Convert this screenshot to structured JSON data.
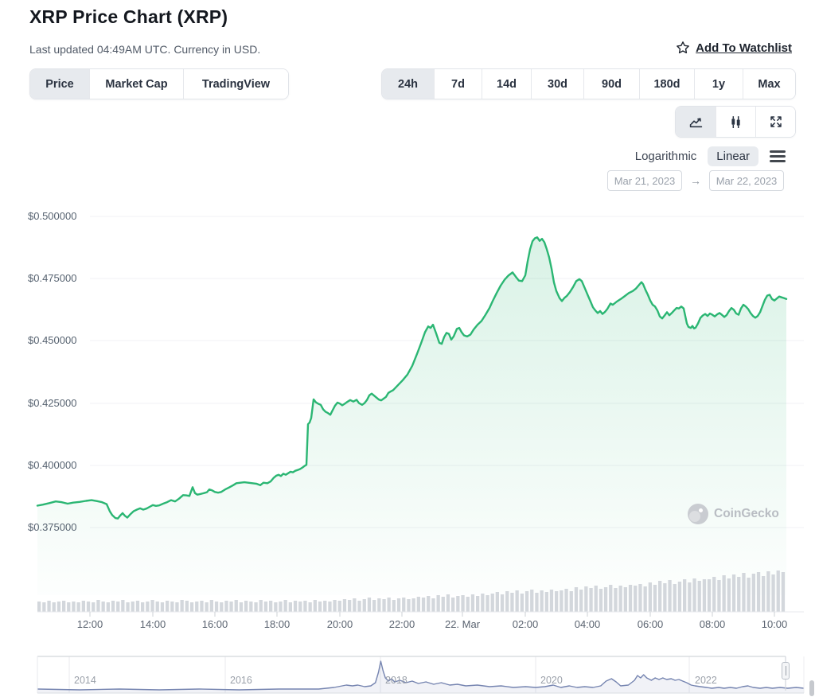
{
  "header": {
    "title": "XRP Price Chart (XRP)",
    "subtitle": "Last updated 04:49AM UTC. Currency in USD.",
    "watchlist_label": "Add To Watchlist"
  },
  "view_tabs": [
    {
      "label": "Price",
      "active": true
    },
    {
      "label": "Market Cap",
      "active": false
    },
    {
      "label": "TradingView",
      "active": false
    }
  ],
  "range_tabs": [
    {
      "label": "24h",
      "active": true
    },
    {
      "label": "7d",
      "active": false
    },
    {
      "label": "14d",
      "active": false
    },
    {
      "label": "30d",
      "active": false
    },
    {
      "label": "90d",
      "active": false
    },
    {
      "label": "180d",
      "active": false
    },
    {
      "label": "1y",
      "active": false
    },
    {
      "label": "Max",
      "active": false
    }
  ],
  "chart_toolbar": {
    "chart_types": [
      {
        "name": "line-chart",
        "active": true
      },
      {
        "name": "candlestick",
        "active": false
      },
      {
        "name": "fullscreen",
        "active": false
      }
    ],
    "scale_options": [
      {
        "label": "Logarithmic",
        "active": false
      },
      {
        "label": "Linear",
        "active": true
      }
    ],
    "date_from": "Mar 21, 2023",
    "date_to": "Mar 22, 2023",
    "range_arrow": "→"
  },
  "watermark": {
    "label": "CoinGecko"
  },
  "chart_data": {
    "type": "area",
    "currency": "USD",
    "title": "XRP Price Chart (XRP)",
    "ylim": [
      0.375,
      0.5
    ],
    "ytick_labels": [
      "$0.500000",
      "$0.475000",
      "$0.450000",
      "$0.425000",
      "$0.400000",
      "$0.375000"
    ],
    "ytick_values": [
      0.5,
      0.475,
      0.45,
      0.425,
      0.4,
      0.375
    ],
    "xtick_labels": [
      "12:00",
      "14:00",
      "16:00",
      "18:00",
      "20:00",
      "22:00",
      "22. Mar",
      "02:00",
      "04:00",
      "06:00",
      "08:00",
      "10:00"
    ],
    "line_color": "#2bb673",
    "grid": true,
    "legend": false,
    "t_domain": [
      0,
      941
    ],
    "points": [
      [
        0,
        0.3838
      ],
      [
        7,
        0.3842
      ],
      [
        15,
        0.3848
      ],
      [
        23,
        0.3855
      ],
      [
        30,
        0.3852
      ],
      [
        38,
        0.3846
      ],
      [
        45,
        0.385
      ],
      [
        53,
        0.3853
      ],
      [
        61,
        0.3857
      ],
      [
        68,
        0.386
      ],
      [
        75,
        0.3856
      ],
      [
        81,
        0.3852
      ],
      [
        87,
        0.3844
      ],
      [
        91,
        0.3815
      ],
      [
        94,
        0.38
      ],
      [
        98,
        0.3788
      ],
      [
        101,
        0.3786
      ],
      [
        104,
        0.3798
      ],
      [
        107,
        0.3808
      ],
      [
        110,
        0.3797
      ],
      [
        113,
        0.379
      ],
      [
        117,
        0.3804
      ],
      [
        121,
        0.3816
      ],
      [
        125,
        0.3822
      ],
      [
        129,
        0.3827
      ],
      [
        133,
        0.3822
      ],
      [
        137,
        0.3826
      ],
      [
        141,
        0.3833
      ],
      [
        145,
        0.384
      ],
      [
        149,
        0.3837
      ],
      [
        153,
        0.3839
      ],
      [
        158,
        0.3846
      ],
      [
        163,
        0.3852
      ],
      [
        168,
        0.386
      ],
      [
        173,
        0.3855
      ],
      [
        178,
        0.3866
      ],
      [
        183,
        0.388
      ],
      [
        187,
        0.3879
      ],
      [
        191,
        0.3877
      ],
      [
        195,
        0.3912
      ],
      [
        198,
        0.3888
      ],
      [
        201,
        0.3882
      ],
      [
        205,
        0.3885
      ],
      [
        209,
        0.3888
      ],
      [
        213,
        0.3892
      ],
      [
        216,
        0.3903
      ],
      [
        219,
        0.39
      ],
      [
        223,
        0.3893
      ],
      [
        227,
        0.389
      ],
      [
        231,
        0.3893
      ],
      [
        236,
        0.3903
      ],
      [
        241,
        0.3911
      ],
      [
        246,
        0.392
      ],
      [
        250,
        0.3928
      ],
      [
        255,
        0.393
      ],
      [
        260,
        0.3932
      ],
      [
        265,
        0.393
      ],
      [
        270,
        0.3928
      ],
      [
        275,
        0.3926
      ],
      [
        280,
        0.392
      ],
      [
        284,
        0.393
      ],
      [
        289,
        0.3928
      ],
      [
        293,
        0.3935
      ],
      [
        297,
        0.395
      ],
      [
        300,
        0.3958
      ],
      [
        303,
        0.3962
      ],
      [
        306,
        0.3957
      ],
      [
        309,
        0.3966
      ],
      [
        312,
        0.3962
      ],
      [
        315,
        0.3968
      ],
      [
        318,
        0.3974
      ],
      [
        321,
        0.3972
      ],
      [
        324,
        0.3978
      ],
      [
        327,
        0.3981
      ],
      [
        330,
        0.3985
      ],
      [
        333,
        0.3991
      ],
      [
        336,
        0.3998
      ],
      [
        338,
        0.4002
      ],
      [
        340,
        0.4165
      ],
      [
        342,
        0.4172
      ],
      [
        344,
        0.419
      ],
      [
        347,
        0.4265
      ],
      [
        350,
        0.4253
      ],
      [
        353,
        0.4247
      ],
      [
        356,
        0.4243
      ],
      [
        359,
        0.4225
      ],
      [
        362,
        0.4215
      ],
      [
        365,
        0.421
      ],
      [
        368,
        0.4203
      ],
      [
        371,
        0.4222
      ],
      [
        374,
        0.424
      ],
      [
        377,
        0.4252
      ],
      [
        380,
        0.4248
      ],
      [
        383,
        0.4241
      ],
      [
        386,
        0.4247
      ],
      [
        389,
        0.4254
      ],
      [
        393,
        0.4262
      ],
      [
        397,
        0.4256
      ],
      [
        401,
        0.4263
      ],
      [
        404,
        0.425
      ],
      [
        408,
        0.4243
      ],
      [
        411,
        0.425
      ],
      [
        414,
        0.4262
      ],
      [
        417,
        0.4281
      ],
      [
        420,
        0.4288
      ],
      [
        423,
        0.428
      ],
      [
        426,
        0.4272
      ],
      [
        429,
        0.4264
      ],
      [
        432,
        0.4261
      ],
      [
        435,
        0.4268
      ],
      [
        438,
        0.4275
      ],
      [
        441,
        0.4291
      ],
      [
        444,
        0.4297
      ],
      [
        447,
        0.4302
      ],
      [
        453,
        0.4322
      ],
      [
        459,
        0.4342
      ],
      [
        465,
        0.4365
      ],
      [
        471,
        0.44
      ],
      [
        477,
        0.4448
      ],
      [
        482,
        0.449
      ],
      [
        487,
        0.4535
      ],
      [
        491,
        0.4558
      ],
      [
        494,
        0.4552
      ],
      [
        497,
        0.4565
      ],
      [
        501,
        0.453
      ],
      [
        505,
        0.4492
      ],
      [
        508,
        0.4488
      ],
      [
        511,
        0.4515
      ],
      [
        514,
        0.4532
      ],
      [
        517,
        0.4528
      ],
      [
        520,
        0.4505
      ],
      [
        523,
        0.4518
      ],
      [
        527,
        0.4548
      ],
      [
        530,
        0.4552
      ],
      [
        533,
        0.4535
      ],
      [
        536,
        0.4522
      ],
      [
        540,
        0.4518
      ],
      [
        544,
        0.4525
      ],
      [
        548,
        0.4545
      ],
      [
        553,
        0.4565
      ],
      [
        558,
        0.458
      ],
      [
        563,
        0.4605
      ],
      [
        568,
        0.4632
      ],
      [
        572,
        0.466
      ],
      [
        577,
        0.4692
      ],
      [
        582,
        0.4722
      ],
      [
        587,
        0.4746
      ],
      [
        592,
        0.4763
      ],
      [
        597,
        0.4775
      ],
      [
        601,
        0.4758
      ],
      [
        605,
        0.4742
      ],
      [
        609,
        0.474
      ],
      [
        613,
        0.4763
      ],
      [
        616,
        0.482
      ],
      [
        619,
        0.4868
      ],
      [
        622,
        0.49
      ],
      [
        625,
        0.4912
      ],
      [
        628,
        0.4916
      ],
      [
        631,
        0.4902
      ],
      [
        634,
        0.491
      ],
      [
        637,
        0.4896
      ],
      [
        640,
        0.4868
      ],
      [
        643,
        0.4835
      ],
      [
        646,
        0.479
      ],
      [
        649,
        0.4735
      ],
      [
        652,
        0.47
      ],
      [
        656,
        0.4672
      ],
      [
        659,
        0.466
      ],
      [
        662,
        0.4672
      ],
      [
        665,
        0.468
      ],
      [
        669,
        0.4696
      ],
      [
        673,
        0.4716
      ],
      [
        677,
        0.474
      ],
      [
        681,
        0.4748
      ],
      [
        684,
        0.474
      ],
      [
        688,
        0.471
      ],
      [
        692,
        0.468
      ],
      [
        695,
        0.4658
      ],
      [
        698,
        0.4635
      ],
      [
        701,
        0.4622
      ],
      [
        704,
        0.4612
      ],
      [
        707,
        0.462
      ],
      [
        710,
        0.4608
      ],
      [
        713,
        0.4616
      ],
      [
        716,
        0.4628
      ],
      [
        720,
        0.465
      ],
      [
        723,
        0.4645
      ],
      [
        728,
        0.4658
      ],
      [
        733,
        0.4668
      ],
      [
        738,
        0.468
      ],
      [
        743,
        0.4692
      ],
      [
        748,
        0.47
      ],
      [
        752,
        0.471
      ],
      [
        756,
        0.4725
      ],
      [
        759,
        0.4736
      ],
      [
        761,
        0.4728
      ],
      [
        764,
        0.4705
      ],
      [
        767,
        0.4685
      ],
      [
        770,
        0.4662
      ],
      [
        773,
        0.4645
      ],
      [
        776,
        0.4638
      ],
      [
        779,
        0.4622
      ],
      [
        782,
        0.4598
      ],
      [
        785,
        0.459
      ],
      [
        788,
        0.4602
      ],
      [
        791,
        0.4615
      ],
      [
        794,
        0.4603
      ],
      [
        797,
        0.4612
      ],
      [
        800,
        0.4622
      ],
      [
        803,
        0.4632
      ],
      [
        806,
        0.463
      ],
      [
        809,
        0.4638
      ],
      [
        812,
        0.463
      ],
      [
        814,
        0.46
      ],
      [
        816,
        0.457
      ],
      [
        818,
        0.4556
      ],
      [
        821,
        0.4552
      ],
      [
        823,
        0.456
      ],
      [
        825,
        0.455
      ],
      [
        827,
        0.4553
      ],
      [
        830,
        0.457
      ],
      [
        833,
        0.4592
      ],
      [
        836,
        0.4602
      ],
      [
        839,
        0.4608
      ],
      [
        842,
        0.46
      ],
      [
        845,
        0.461
      ],
      [
        848,
        0.4605
      ],
      [
        851,
        0.4598
      ],
      [
        854,
        0.4606
      ],
      [
        857,
        0.4612
      ],
      [
        860,
        0.4605
      ],
      [
        863,
        0.4596
      ],
      [
        866,
        0.4604
      ],
      [
        869,
        0.462
      ],
      [
        872,
        0.4632
      ],
      [
        875,
        0.4625
      ],
      [
        878,
        0.461
      ],
      [
        881,
        0.4605
      ],
      [
        884,
        0.463
      ],
      [
        887,
        0.4645
      ],
      [
        890,
        0.4638
      ],
      [
        893,
        0.4628
      ],
      [
        896,
        0.4612
      ],
      [
        899,
        0.46
      ],
      [
        902,
        0.4593
      ],
      [
        905,
        0.46
      ],
      [
        908,
        0.4615
      ],
      [
        911,
        0.464
      ],
      [
        914,
        0.4665
      ],
      [
        917,
        0.4682
      ],
      [
        920,
        0.4685
      ],
      [
        923,
        0.4668
      ],
      [
        926,
        0.4662
      ],
      [
        929,
        0.467
      ],
      [
        932,
        0.4678
      ],
      [
        935,
        0.4675
      ],
      [
        938,
        0.4672
      ],
      [
        941,
        0.4668
      ]
    ],
    "volume": {
      "color": "#d3d7dc",
      "heights": [
        13,
        12,
        14,
        12,
        13,
        14,
        12,
        13,
        12,
        14,
        13,
        12,
        15,
        13,
        12,
        14,
        13,
        15,
        12,
        13,
        14,
        12,
        13,
        15,
        13,
        12,
        14,
        13,
        12,
        15,
        14,
        12,
        13,
        14,
        12,
        15,
        13,
        12,
        14,
        13,
        15,
        12,
        14,
        13,
        12,
        15,
        13,
        14,
        12,
        13,
        15,
        12,
        14,
        13,
        14,
        12,
        15,
        13,
        14,
        13,
        15,
        14,
        16,
        15,
        17,
        14,
        16,
        18,
        15,
        17,
        16,
        18,
        15,
        17,
        18,
        16,
        17,
        19,
        18,
        20,
        17,
        21,
        19,
        22,
        18,
        20,
        21,
        19,
        22,
        20,
        23,
        21,
        23,
        25,
        22,
        26,
        24,
        27,
        23,
        26,
        28,
        24,
        27,
        25,
        28,
        26,
        27,
        29,
        26,
        31,
        28,
        32,
        30,
        33,
        29,
        31,
        34,
        30,
        33,
        31,
        34,
        33,
        35,
        32,
        37,
        34,
        39,
        36,
        40,
        35,
        38,
        41,
        37,
        42,
        39,
        41,
        41,
        44,
        40,
        46,
        42,
        47,
        44,
        49,
        43,
        48,
        50,
        45,
        51,
        47,
        52,
        50
      ]
    }
  },
  "navigator": {
    "year_labels": [
      "2014",
      "2016",
      "2018",
      "2020",
      "2022"
    ],
    "line_color": "#7584b0",
    "points": [
      [
        0.0,
        5
      ],
      [
        0.055,
        4
      ],
      [
        0.107,
        5
      ],
      [
        0.159,
        4
      ],
      [
        0.211,
        5
      ],
      [
        0.263,
        4
      ],
      [
        0.315,
        5
      ],
      [
        0.367,
        5
      ],
      [
        0.387,
        7
      ],
      [
        0.403,
        10
      ],
      [
        0.411,
        9
      ],
      [
        0.418,
        10
      ],
      [
        0.427,
        8
      ],
      [
        0.435,
        9
      ],
      [
        0.441,
        13
      ],
      [
        0.445,
        26
      ],
      [
        0.448,
        40
      ],
      [
        0.451,
        28
      ],
      [
        0.454,
        19
      ],
      [
        0.458,
        15
      ],
      [
        0.462,
        18
      ],
      [
        0.466,
        14
      ],
      [
        0.473,
        16
      ],
      [
        0.481,
        13
      ],
      [
        0.489,
        15
      ],
      [
        0.497,
        12
      ],
      [
        0.507,
        14
      ],
      [
        0.517,
        11
      ],
      [
        0.527,
        13
      ],
      [
        0.538,
        10
      ],
      [
        0.548,
        11
      ],
      [
        0.559,
        9
      ],
      [
        0.574,
        10
      ],
      [
        0.59,
        8
      ],
      [
        0.605,
        9
      ],
      [
        0.621,
        7
      ],
      [
        0.637,
        8
      ],
      [
        0.65,
        7
      ],
      [
        0.662,
        8
      ],
      [
        0.673,
        10
      ],
      [
        0.683,
        7
      ],
      [
        0.694,
        9
      ],
      [
        0.704,
        7
      ],
      [
        0.714,
        8
      ],
      [
        0.725,
        7
      ],
      [
        0.735,
        9
      ],
      [
        0.742,
        15
      ],
      [
        0.749,
        18
      ],
      [
        0.755,
        14
      ],
      [
        0.761,
        9
      ],
      [
        0.771,
        10
      ],
      [
        0.779,
        16
      ],
      [
        0.783,
        22
      ],
      [
        0.787,
        19
      ],
      [
        0.791,
        23
      ],
      [
        0.795,
        19
      ],
      [
        0.801,
        16
      ],
      [
        0.806,
        19
      ],
      [
        0.811,
        17
      ],
      [
        0.816,
        19
      ],
      [
        0.821,
        17
      ],
      [
        0.827,
        18
      ],
      [
        0.832,
        16
      ],
      [
        0.837,
        17
      ],
      [
        0.842,
        15
      ],
      [
        0.847,
        13
      ],
      [
        0.853,
        10
      ],
      [
        0.858,
        9
      ],
      [
        0.865,
        8
      ],
      [
        0.873,
        7
      ],
      [
        0.88,
        6
      ],
      [
        0.889,
        7
      ],
      [
        0.896,
        6
      ],
      [
        0.904,
        7
      ],
      [
        0.912,
        6
      ],
      [
        0.92,
        8
      ],
      [
        0.927,
        9
      ],
      [
        0.934,
        7
      ],
      [
        0.943,
        6
      ],
      [
        0.951,
        7
      ],
      [
        0.959,
        6
      ],
      [
        0.969,
        7
      ],
      [
        0.979,
        6
      ],
      [
        0.99,
        7
      ],
      [
        1.0,
        6
      ]
    ]
  }
}
